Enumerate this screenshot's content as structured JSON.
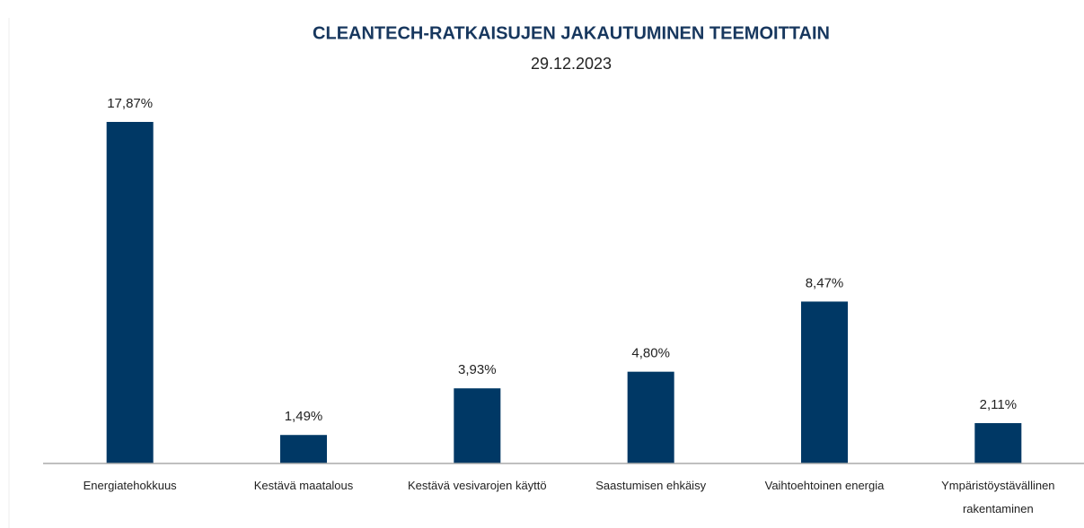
{
  "chart_data": {
    "type": "bar",
    "title": "CLEANTECH-RATKAISUJEN JAKAUTUMINEN TEEMOITTAIN",
    "subtitle": "29.12.2023",
    "categories": [
      "Energiatehokkuus",
      "Kestävä maatalous",
      "Kestävä vesivarojen käyttö",
      "Saastumisen ehkäisy",
      "Vaihtoehtoinen energia",
      "Ympäristöystävällinen rakentaminen"
    ],
    "values": [
      17.87,
      1.49,
      3.93,
      4.8,
      8.47,
      2.11
    ],
    "value_labels": [
      "17,87%",
      "1,49%",
      "3,93%",
      "4,80%",
      "8,47%",
      "2,11%"
    ],
    "color": "#003865"
  }
}
